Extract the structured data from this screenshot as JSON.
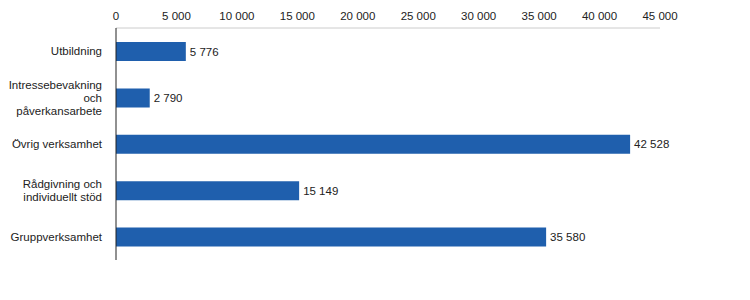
{
  "chart_data": {
    "type": "bar",
    "orientation": "horizontal",
    "categories": [
      "Utbildning",
      "Intressebevakning och påverkansarbete",
      "Övrig verksamhet",
      "Rådgivning och individuellt stöd",
      "Gruppverksamhet"
    ],
    "values": [
      5776,
      2790,
      42528,
      15149,
      35580
    ],
    "value_labels": [
      "5 776",
      "2 790",
      "42 528",
      "15 149",
      "35 580"
    ],
    "data_labels": true,
    "color": "#1f5fad",
    "xlim": [
      0,
      45000
    ],
    "xticks": [
      0,
      {
        "value": 5000,
        "label": "5 000"
      },
      {
        "value": 10000,
        "label": "10 000"
      },
      {
        "value": 15000,
        "label": "15 000"
      },
      {
        "value": 20000,
        "label": "20 000"
      },
      {
        "value": 25000,
        "label": "25 000"
      },
      {
        "value": 30000,
        "label": "30 000"
      },
      {
        "value": 35000,
        "label": "35 000"
      },
      {
        "value": 40000,
        "label": "40 000"
      },
      {
        "value": 45000,
        "label": "45 000"
      }
    ],
    "grid": false
  }
}
